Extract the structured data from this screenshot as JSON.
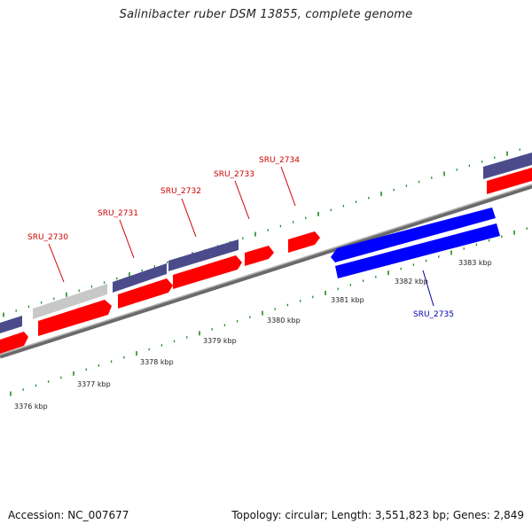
{
  "title": "Salinibacter ruber DSM 13855, complete genome",
  "footer": {
    "accession": "Accession: NC_007677",
    "summary": "Topology: circular; Length: 3,551,823 bp; Genes: 2,849"
  },
  "colors": {
    "backbone": "#8c8c8c",
    "cds": "#ff0000",
    "gene_top": "#4b4b8c",
    "gene_pseudo": "#c8c8c8",
    "gene_bottom": "#0000ff",
    "tick": "#228b22",
    "label_top": "#cc0000",
    "label_bottom": "#0000aa"
  },
  "scale_labels": [
    "3376 kbp",
    "3377 kbp",
    "3378 kbp",
    "3379 kbp",
    "3380 kbp",
    "3381 kbp",
    "3382 kbp",
    "3383 kbp"
  ],
  "gene_labels": [
    {
      "text": "SRU_2730",
      "strand": "top"
    },
    {
      "text": "SRU_2731",
      "strand": "top"
    },
    {
      "text": "SRU_2732",
      "strand": "top"
    },
    {
      "text": "SRU_2733",
      "strand": "top"
    },
    {
      "text": "SRU_2734",
      "strand": "top"
    },
    {
      "text": "SRU_2735",
      "strand": "bottom"
    }
  ]
}
